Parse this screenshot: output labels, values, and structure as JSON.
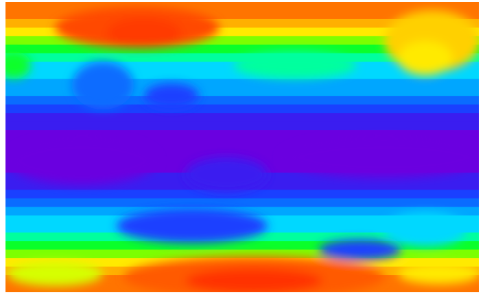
{
  "map": {
    "type": "global-field-heatmap",
    "colormap": "rainbow",
    "border_color": "#ffffff",
    "palette": [
      "#6a00e0",
      "#3a1df0",
      "#1a40ff",
      "#0a6cff",
      "#00a6ff",
      "#00d8ff",
      "#00ff9e",
      "#0aff2a",
      "#7cff00",
      "#d6ff00",
      "#ffea00",
      "#ffb000",
      "#ff7400",
      "#ff4a00"
    ],
    "latitude_band_levels": [
      12,
      12,
      11,
      10,
      8,
      7,
      6,
      5,
      5,
      4,
      4,
      3,
      2,
      1,
      1,
      0,
      0,
      0,
      0,
      0,
      1,
      1,
      2,
      3,
      4,
      5,
      5,
      6,
      7,
      8,
      10,
      11,
      12,
      12
    ]
  }
}
